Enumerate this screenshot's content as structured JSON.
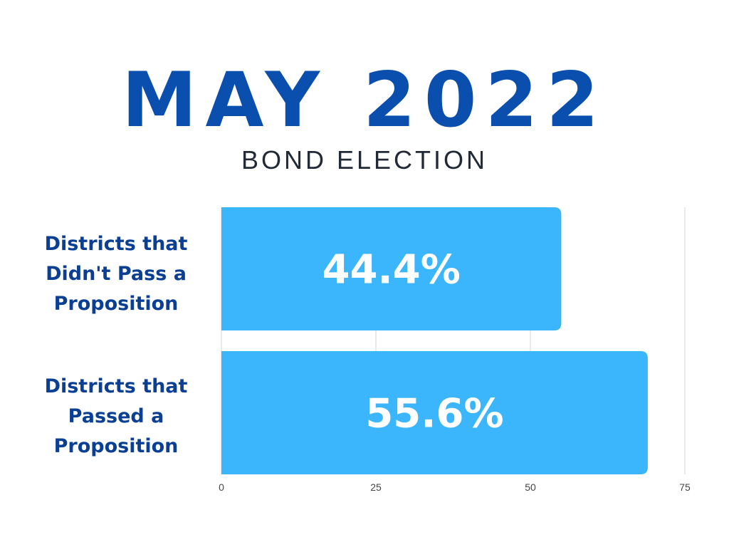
{
  "title": "MAY 2022",
  "subtitle": "BOND ELECTION",
  "chart_data": {
    "type": "bar",
    "orientation": "horizontal",
    "categories": [
      "Districts that Didn't Pass a Proposition",
      "Districts that Passed a Proposition"
    ],
    "category_lines": [
      [
        "Districts that",
        "Didn't Pass a",
        "Proposition"
      ],
      [
        "Districts that",
        "Passed a",
        "Proposition"
      ]
    ],
    "values": [
      55,
      69
    ],
    "data_labels": [
      "44.4%",
      "55.6%"
    ],
    "xlim": [
      0,
      75
    ],
    "xticks": [
      "0",
      "25",
      "50",
      "75"
    ],
    "grid": true,
    "bar_color": "#3bb6fc",
    "label_color": "#0a3f93",
    "title_color": "#0a4fad"
  }
}
